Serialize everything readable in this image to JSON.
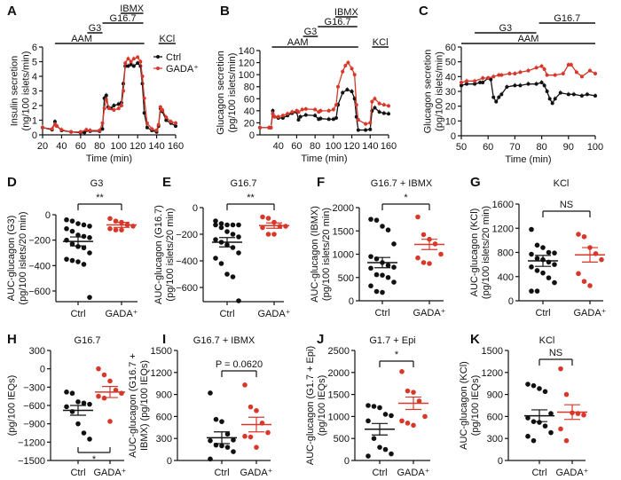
{
  "colors": {
    "ctrl": "#111111",
    "gada": "#d8382a"
  },
  "chart_data": [
    {
      "panel": "A",
      "type": "line",
      "xlabel": "Time (min)",
      "ylabel": [
        "Insulin secretion",
        "(ng/100 islets/min)"
      ],
      "xlim": [
        20,
        160
      ],
      "ylim": [
        0,
        6
      ],
      "xticks": [
        20,
        40,
        60,
        80,
        100,
        120,
        140,
        160
      ],
      "yticks": [
        0,
        1,
        2,
        3,
        4,
        5,
        6
      ],
      "legend": [
        "Ctrl",
        "GADA⁺"
      ],
      "treatments": [
        {
          "label": "AAM",
          "start": 33,
          "end": 127
        },
        {
          "label": "G3",
          "start": 67,
          "end": 83
        },
        {
          "label": "G16.7",
          "start": 83,
          "end": 126
        },
        {
          "label": "IBMX",
          "start": 102,
          "end": 126
        },
        {
          "label": "KCl",
          "start": 142,
          "end": 160
        }
      ],
      "series": [
        {
          "name": "Ctrl",
          "x": [
            20,
            30,
            33,
            35,
            40,
            50,
            60,
            64,
            66,
            70,
            80,
            83,
            85,
            87,
            89,
            92,
            95,
            100,
            103,
            105,
            107,
            110,
            113,
            116,
            120,
            123,
            125,
            127,
            130,
            135,
            140,
            142,
            144,
            146,
            150,
            155,
            160
          ],
          "y": [
            0.5,
            0.35,
            0.9,
            0.6,
            0.3,
            0.2,
            0.15,
            0.15,
            0.3,
            0.25,
            0.25,
            0.4,
            2.5,
            2.7,
            1.9,
            1.8,
            2.0,
            2.1,
            2.2,
            3.5,
            4.7,
            4.7,
            4.8,
            4.7,
            4.9,
            4.7,
            3.5,
            1.5,
            0.5,
            0.3,
            0.2,
            0.6,
            1.8,
            1.6,
            1.0,
            0.8,
            0.6
          ]
        },
        {
          "name": "GADA⁺",
          "x": [
            20,
            30,
            33,
            35,
            40,
            50,
            60,
            66,
            70,
            80,
            83,
            85,
            87,
            90,
            95,
            100,
            103,
            105,
            107,
            110,
            113,
            116,
            120,
            123,
            125,
            127,
            130,
            135,
            140,
            142,
            144,
            146,
            150,
            155,
            160
          ],
          "y": [
            0.5,
            0.4,
            0.7,
            0.6,
            0.35,
            0.2,
            0.2,
            0.35,
            0.3,
            0.3,
            0.8,
            1.8,
            2.4,
            1.8,
            1.7,
            1.8,
            2.0,
            3.0,
            4.9,
            5.2,
            5.0,
            5.2,
            5.3,
            5.0,
            4.0,
            2.5,
            0.8,
            0.4,
            0.3,
            0.7,
            1.9,
            1.7,
            1.2,
            0.9,
            0.8
          ]
        }
      ]
    },
    {
      "panel": "B",
      "type": "line",
      "xlabel": "Time (min)",
      "ylabel": [
        "Glucagon secretion",
        "(pg/100 islets/min)"
      ],
      "xlim": [
        20,
        160
      ],
      "ylim": [
        0,
        140
      ],
      "xticks": [
        40,
        60,
        80,
        100,
        120,
        140,
        160
      ],
      "yticks": [
        0,
        20,
        40,
        60,
        80,
        100,
        120,
        140
      ],
      "treatments": [
        {
          "label": "AAM",
          "start": 33,
          "end": 127
        },
        {
          "label": "G3",
          "start": 67,
          "end": 83
        },
        {
          "label": "G16.7",
          "start": 83,
          "end": 126
        },
        {
          "label": "IBMX",
          "start": 102,
          "end": 126
        },
        {
          "label": "KCl",
          "start": 142,
          "end": 160
        }
      ],
      "series": [
        {
          "name": "Ctrl",
          "x": [
            20,
            30,
            32,
            34,
            36,
            40,
            45,
            50,
            55,
            60,
            62,
            64,
            70,
            80,
            84,
            86,
            95,
            100,
            103,
            105,
            110,
            115,
            120,
            123,
            125,
            127,
            135,
            140,
            142,
            145,
            150,
            155,
            160
          ],
          "y": [
            12,
            12,
            12,
            40,
            30,
            28,
            28,
            32,
            36,
            38,
            25,
            30,
            33,
            32,
            26,
            27,
            26,
            26,
            28,
            50,
            70,
            75,
            72,
            60,
            30,
            8,
            8,
            9,
            40,
            45,
            38,
            36,
            35
          ]
        },
        {
          "name": "GADA⁺",
          "x": [
            20,
            30,
            32,
            34,
            36,
            40,
            45,
            50,
            55,
            60,
            62,
            66,
            70,
            80,
            84,
            86,
            95,
            100,
            103,
            105,
            110,
            113,
            116,
            120,
            123,
            125,
            127,
            135,
            140,
            142,
            145,
            150,
            155,
            160
          ],
          "y": [
            12,
            12,
            12,
            35,
            30,
            30,
            32,
            35,
            38,
            40,
            38,
            42,
            43,
            42,
            38,
            40,
            40,
            42,
            50,
            80,
            105,
            115,
            120,
            110,
            100,
            50,
            25,
            18,
            20,
            55,
            60,
            52,
            50,
            48
          ]
        }
      ]
    },
    {
      "panel": "C",
      "type": "line",
      "xlabel": "Time (min)",
      "ylabel": [
        "Glucagon secretion",
        "(pg/100 islets/min)"
      ],
      "xlim": [
        50,
        100
      ],
      "ylim": [
        0,
        60
      ],
      "xticks": [
        50,
        60,
        70,
        80,
        90,
        100
      ],
      "yticks": [
        0,
        10,
        20,
        30,
        40,
        50,
        60
      ],
      "treatments": [
        {
          "label": "AAM",
          "start": 50,
          "end": 100
        },
        {
          "label": "G3",
          "start": 55,
          "end": 78
        },
        {
          "label": "G16.7",
          "start": 79,
          "end": 100
        }
      ],
      "series": [
        {
          "name": "Ctrl",
          "x": [
            50,
            52,
            55,
            57,
            58,
            60,
            61,
            62,
            63,
            64,
            65,
            67,
            70,
            72,
            75,
            78,
            80,
            81,
            82,
            83,
            84,
            85,
            87,
            90,
            92,
            95,
            97,
            100
          ],
          "y": [
            34,
            35,
            35,
            36,
            36,
            39,
            38,
            26,
            23,
            26,
            28,
            33,
            34,
            34,
            35,
            35,
            36,
            34,
            30,
            25,
            22,
            25,
            29,
            28,
            28,
            27,
            28,
            27
          ]
        },
        {
          "name": "GADA⁺",
          "x": [
            50,
            52,
            55,
            58,
            60,
            62,
            64,
            65,
            68,
            70,
            72,
            75,
            78,
            80,
            81,
            82,
            85,
            88,
            90,
            91,
            93,
            95,
            98,
            100
          ],
          "y": [
            36,
            37,
            37,
            39,
            39,
            40,
            41,
            41,
            42,
            42,
            43,
            44,
            46,
            47,
            45,
            41,
            41,
            42,
            48,
            48,
            43,
            40,
            44,
            42
          ]
        }
      ]
    },
    {
      "panel": "D",
      "type": "scatter",
      "title": "G3",
      "sig": "**",
      "ylabel": [
        "AUC-glucagon (G3)",
        "(pg/100 islets/20 min)"
      ],
      "ylim": [
        -700,
        0
      ],
      "yticks": [
        0,
        -200,
        -400,
        -600
      ],
      "categories": [
        "Ctrl",
        "GADA⁺"
      ],
      "groups": [
        {
          "values": [
            -40,
            -50,
            -70,
            -80,
            -90,
            -110,
            -130,
            -160,
            -170,
            -180,
            -200,
            -230,
            -250,
            -260,
            -300,
            -350,
            -360,
            -370,
            -390,
            -650
          ],
          "mean": -210,
          "sem": 35
        },
        {
          "values": [
            -30,
            -50,
            -60,
            -80,
            -90,
            -110,
            -120,
            -120
          ],
          "mean": -80,
          "sem": 20
        }
      ]
    },
    {
      "panel": "E",
      "type": "scatter",
      "title": "G16.7",
      "sig": "**",
      "ylabel": [
        "AUC-glucagon (G16.7)",
        "(pg/100 islets/20 min)"
      ],
      "ylim": [
        -700,
        0
      ],
      "yticks": [
        0,
        -200,
        -400,
        -600
      ],
      "categories": [
        "Ctrl",
        "GADA⁺"
      ],
      "groups": [
        {
          "values": [
            -100,
            -120,
            -130,
            -130,
            -130,
            -130,
            -150,
            -180,
            -200,
            -220,
            -240,
            -260,
            -280,
            -300,
            -340,
            -380,
            -420,
            -500,
            -520,
            -700
          ],
          "mean": -260,
          "sem": 35
        },
        {
          "values": [
            -70,
            -80,
            -110,
            -140,
            -140,
            -150,
            -200,
            -200
          ],
          "mean": -135,
          "sem": 20
        }
      ]
    },
    {
      "panel": "F",
      "type": "scatter",
      "title": "G16.7 + IBMX",
      "sig": "*",
      "ylabel": [
        "AUC-glucagon (IBMX)",
        "(pg/100 islets/20 min)"
      ],
      "ylim": [
        0,
        2000
      ],
      "yticks": [
        0,
        500,
        1000,
        1500,
        2000
      ],
      "categories": [
        "Ctrl",
        "GADA⁺"
      ],
      "groups": [
        {
          "values": [
            1750,
            1730,
            1600,
            1520,
            1220,
            950,
            900,
            820,
            760,
            720,
            700,
            560,
            550,
            500,
            400,
            320,
            200,
            180
          ],
          "mean": 820,
          "sem": 110
        },
        {
          "values": [
            1800,
            1420,
            1320,
            1220,
            1000,
            920,
            820,
            800
          ],
          "mean": 1210,
          "sem": 110
        }
      ]
    },
    {
      "panel": "G",
      "type": "scatter",
      "title": "KCl",
      "sig": "NS",
      "ylabel": [
        "AUC-glucagon (KCl)",
        "(pg/100 islets/20 min)"
      ],
      "ylim": [
        0,
        1600
      ],
      "yticks": [
        0,
        400,
        800,
        1200,
        1600
      ],
      "categories": [
        "Ctrl",
        "GADA⁺"
      ],
      "groups": [
        {
          "values": [
            1180,
            920,
            880,
            800,
            790,
            770,
            700,
            680,
            640,
            600,
            560,
            500,
            460,
            380,
            300,
            160,
            160
          ],
          "mean": 660,
          "sem": 90
        },
        {
          "values": [
            1100,
            1060,
            880,
            780,
            680,
            450,
            320,
            250
          ],
          "mean": 760,
          "sem": 120
        }
      ]
    },
    {
      "panel": "H",
      "type": "scatter",
      "title": "G16.7",
      "sig": "*",
      "ylabel": [
        "",
        "(pg/100 IEQs)"
      ],
      "ylim": [
        -1500,
        300
      ],
      "yticks": [
        300,
        0,
        -300,
        -600,
        -900,
        -1200,
        -1500
      ],
      "categories": [
        "Ctrl",
        "GADA⁺"
      ],
      "groups": [
        {
          "values": [
            -380,
            -400,
            -540,
            -560,
            -580,
            -620,
            -700,
            -900,
            -1050,
            -1150
          ],
          "mean": -680,
          "sem": 80
        },
        {
          "values": [
            0,
            -100,
            -200,
            -350,
            -400,
            -450,
            -480,
            -860
          ],
          "mean": -380,
          "sem": 90
        }
      ]
    },
    {
      "panel": "I",
      "type": "scatter",
      "title": "G16.7 + IBMX",
      "sig": "P = 0.0620",
      "ylabel": [
        "AUC-glucagon (G16.7 +",
        "IBMX) (pg/100 IEQs)"
      ],
      "ylim": [
        0,
        1500
      ],
      "yticks": [
        0,
        300,
        600,
        900,
        1200,
        1500
      ],
      "categories": [
        "Ctrl",
        "GADA⁺"
      ],
      "groups": [
        {
          "values": [
            920,
            560,
            530,
            360,
            280,
            270,
            210,
            200,
            180,
            120,
            20
          ],
          "mean": 310,
          "sem": 80
        },
        {
          "values": [
            1030,
            730,
            680,
            510,
            380,
            330,
            320,
            180
          ],
          "mean": 490,
          "sem": 100
        }
      ]
    },
    {
      "panel": "J",
      "type": "scatter",
      "title": "G1.7 + Epi",
      "sig": "*",
      "ylabel": [
        "AUC-glucagon (G1.7 + Epi)",
        "(pg/100 IEQs)"
      ],
      "ylim": [
        0,
        2500
      ],
      "yticks": [
        0,
        500,
        1000,
        1500,
        2000,
        2500
      ],
      "categories": [
        "Ctrl",
        "GADA⁺"
      ],
      "groups": [
        {
          "values": [
            1250,
            1230,
            1200,
            1050,
            1020,
            900,
            500,
            300,
            250,
            150,
            100
          ],
          "mean": 710,
          "sem": 130
        },
        {
          "values": [
            2020,
            1580,
            1550,
            1350,
            1000,
            900,
            850,
            800
          ],
          "mean": 1300,
          "sem": 140
        }
      ]
    },
    {
      "panel": "K",
      "type": "scatter",
      "title": "KCl",
      "sig": "NS",
      "ylabel": [
        "AUC-glucagon (KCl)",
        "(pg/100 IEQs)"
      ],
      "ylim": [
        0,
        1500
      ],
      "yticks": [
        0,
        300,
        600,
        900,
        1200,
        1500
      ],
      "categories": [
        "Ctrl",
        "GADA⁺"
      ],
      "groups": [
        {
          "values": [
            1040,
            1020,
            980,
            940,
            640,
            580,
            530,
            520,
            470,
            380,
            330,
            270
          ],
          "mean": 610,
          "sem": 80
        },
        {
          "values": [
            1250,
            900,
            650,
            640,
            620,
            430,
            270
          ],
          "mean": 660,
          "sem": 100
        }
      ]
    }
  ]
}
